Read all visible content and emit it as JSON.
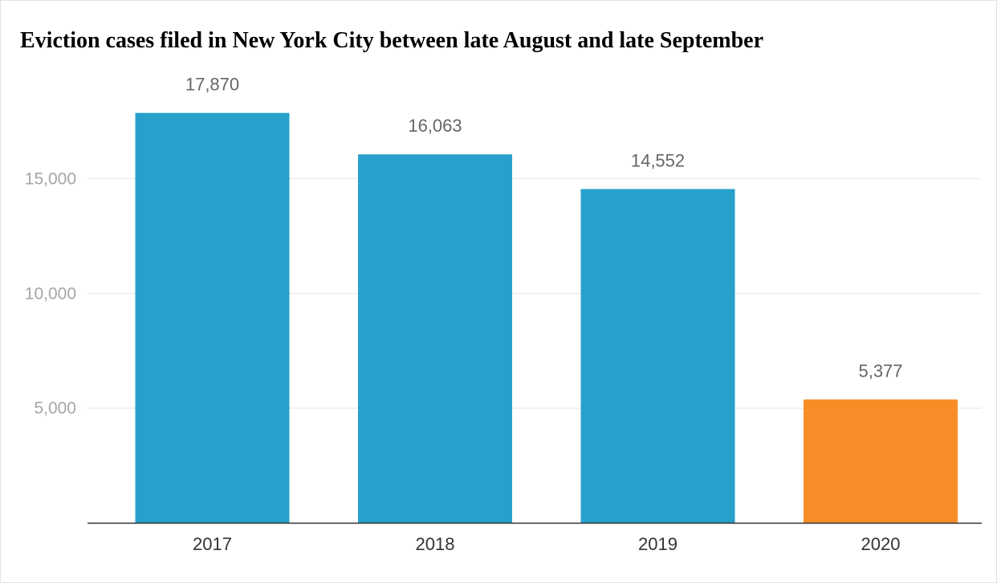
{
  "colors": {
    "bar_default": "#27a1cb",
    "bar_highlight": "#f68d27",
    "grid": "#e6e6e6",
    "baseline": "#333333"
  },
  "chart_data": {
    "type": "bar",
    "title": "Eviction cases filed in New York City between late August and late September",
    "categories": [
      "2017",
      "2018",
      "2019",
      "2020"
    ],
    "values": [
      17870,
      16063,
      14552,
      5377
    ],
    "value_labels": [
      "17,870",
      "16,063",
      "14,552",
      "5,377"
    ],
    "highlight": [
      false,
      false,
      false,
      true
    ],
    "yticks": [
      5000,
      10000,
      15000
    ],
    "ytick_labels": [
      "5,000",
      "10,000",
      "15,000"
    ],
    "ylim": [
      0,
      20000
    ],
    "grid": true,
    "legend": "none",
    "xlabel": "",
    "ylabel": ""
  }
}
